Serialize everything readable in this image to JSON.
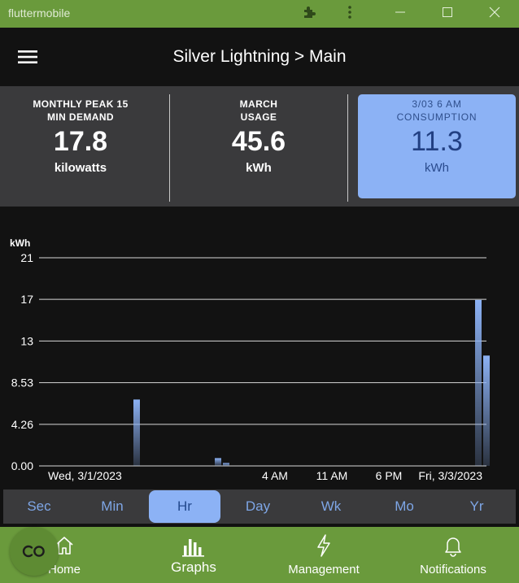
{
  "window": {
    "title": "fluttermobile",
    "icons": [
      "puzzle-icon",
      "kebab-icon",
      "minimize-icon",
      "maximize-icon",
      "close-icon"
    ]
  },
  "appbar": {
    "title": "Silver Lightning > Main",
    "menu_icon": "hamburger-icon"
  },
  "stats": {
    "peak": {
      "label_line1": "MONTHLY PEAK 15",
      "label_line2": "MIN DEMAND",
      "value": "17.8",
      "unit": "kilowatts"
    },
    "usage": {
      "label_line1": "MARCH",
      "label_line2": "USAGE",
      "value": "45.6",
      "unit": "kWh"
    },
    "consumption": {
      "label_line1": "3/03 6 AM",
      "label_line2": "CONSUMPTION",
      "value": "11.3",
      "unit": "kWh",
      "color": "#8cb2f5"
    }
  },
  "chart_data": {
    "type": "bar",
    "ylabel": "kWh",
    "y_ticks": [
      "0.00",
      "4.26",
      "8.53",
      "13",
      "17",
      "21"
    ],
    "y_tick_values": [
      0,
      4.26,
      8.53,
      12.79,
      17.06,
      21.32
    ],
    "ylim": [
      0,
      21.32
    ],
    "x_tick_labels": [
      "Wed, 3/1/2023",
      "4 AM",
      "11 AM",
      "6 PM",
      "Fri, 3/3/2023"
    ],
    "x_tick_hours": [
      0,
      28,
      35,
      42,
      48
    ],
    "x_range_hours": [
      0,
      54
    ],
    "grid": true,
    "bar_color": "#8cb2f5",
    "bars": [
      {
        "hour": 11,
        "value": 6.8
      },
      {
        "hour": 21,
        "value": 0.8
      },
      {
        "hour": 22,
        "value": 0.3
      },
      {
        "hour": 53,
        "value": 17.0
      },
      {
        "hour": 54,
        "value": 11.3
      }
    ]
  },
  "ranges": {
    "items": [
      "Sec",
      "Min",
      "Hr",
      "Day",
      "Wk",
      "Mo",
      "Yr"
    ],
    "active_index": 2
  },
  "bottomnav": {
    "home": "Home",
    "graphs": "Graphs",
    "management": "Management",
    "notifications": "Notifications",
    "active": "graphs"
  },
  "colors": {
    "brand_green": "#6a9a3c",
    "accent_blue": "#8cb2f5",
    "panel_gray": "#3a3a3c"
  }
}
